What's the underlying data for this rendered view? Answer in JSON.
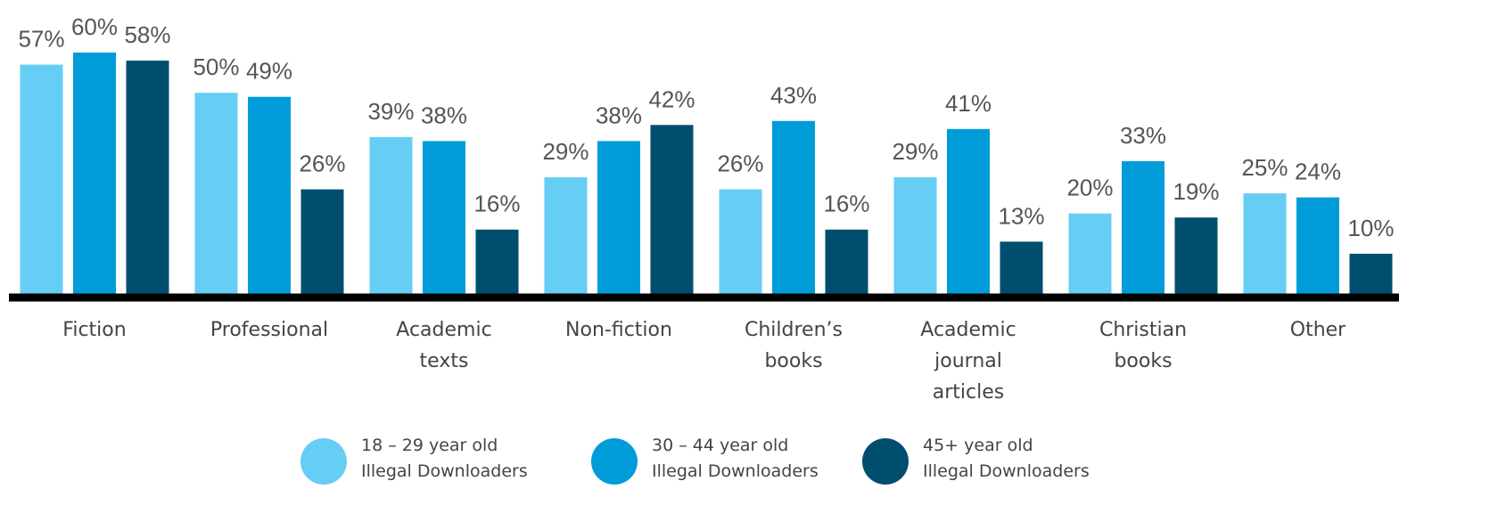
{
  "chart_data": {
    "type": "bar",
    "categories": [
      "Fiction",
      "Professional",
      "Academic\ntexts",
      "Non-fiction",
      "Children’s\nbooks",
      "Academic\njournal\narticles",
      "Christian\nbooks",
      "Other"
    ],
    "series": [
      {
        "name": "18 – 29 year old\nIllegal Downloaders",
        "color": "#66cdf5",
        "values": [
          57,
          50,
          39,
          29,
          26,
          29,
          20,
          25
        ],
        "value_labels": [
          "57%",
          "50%",
          "39%",
          "29%",
          "26%",
          "29%",
          "20%",
          "25%"
        ]
      },
      {
        "name": "30 – 44 year old\nIllegal Downloaders",
        "color": "#009cd9",
        "values": [
          60,
          49,
          38,
          38,
          43,
          41,
          33,
          24
        ],
        "value_labels": [
          "60%",
          "49%",
          "38%",
          "38%",
          "43%",
          "41%",
          "33%",
          "24%"
        ]
      },
      {
        "name": "45+ year old\nIllegal Downloaders",
        "color": "#004e6d",
        "values": [
          58,
          26,
          16,
          42,
          16,
          13,
          19,
          10
        ],
        "value_labels": [
          "58%",
          "26%",
          "16%",
          "42%",
          "16%",
          "13%",
          "19%",
          "10%"
        ]
      }
    ],
    "ylim": [
      0,
      60
    ]
  }
}
